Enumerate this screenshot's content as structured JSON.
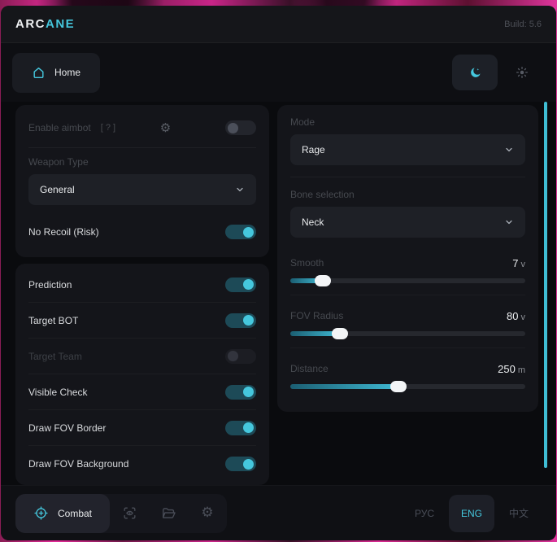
{
  "header": {
    "brand_prefix": "ARC",
    "brand_suffix": "ANE",
    "build": "Build: 5.6"
  },
  "nav": {
    "home_label": "Home",
    "theme": {
      "dark_active": true,
      "light_active": false
    }
  },
  "aimbot_card": {
    "enable_label": "Enable aimbot",
    "enable_help": "[ ? ]",
    "enable_on": false,
    "weapon_type_label": "Weapon Type",
    "weapon_type_value": "General",
    "no_recoil": {
      "label": "No Recoil (Risk)",
      "on": true
    }
  },
  "toggle_card": {
    "items": [
      {
        "label": "Prediction",
        "on": true,
        "disabled": false
      },
      {
        "label": "Target BOT",
        "on": true,
        "disabled": false
      },
      {
        "label": "Target Team",
        "on": false,
        "disabled": true
      },
      {
        "label": "Visible Check",
        "on": true,
        "disabled": false
      },
      {
        "label": "Draw FOV Border",
        "on": true,
        "disabled": false
      },
      {
        "label": "Draw FOV Background",
        "on": true,
        "disabled": false
      }
    ]
  },
  "settings_card": {
    "mode_label": "Mode",
    "mode_value": "Rage",
    "bone_label": "Bone selection",
    "bone_value": "Neck",
    "sliders": [
      {
        "label": "Smooth",
        "value": "7",
        "unit": "v",
        "percent": 14
      },
      {
        "label": "FOV Radius",
        "value": "80",
        "unit": "v",
        "percent": 21
      },
      {
        "label": "Distance",
        "value": "250",
        "unit": "m",
        "percent": 46
      }
    ]
  },
  "footer": {
    "combat_label": "Combat",
    "languages": [
      {
        "label": "РУС",
        "active": false
      },
      {
        "label": "ENG",
        "active": true
      },
      {
        "label": "中文",
        "active": false
      }
    ]
  },
  "colors": {
    "accent": "#45c7dd",
    "scrollbar": "#3fbdd4"
  }
}
